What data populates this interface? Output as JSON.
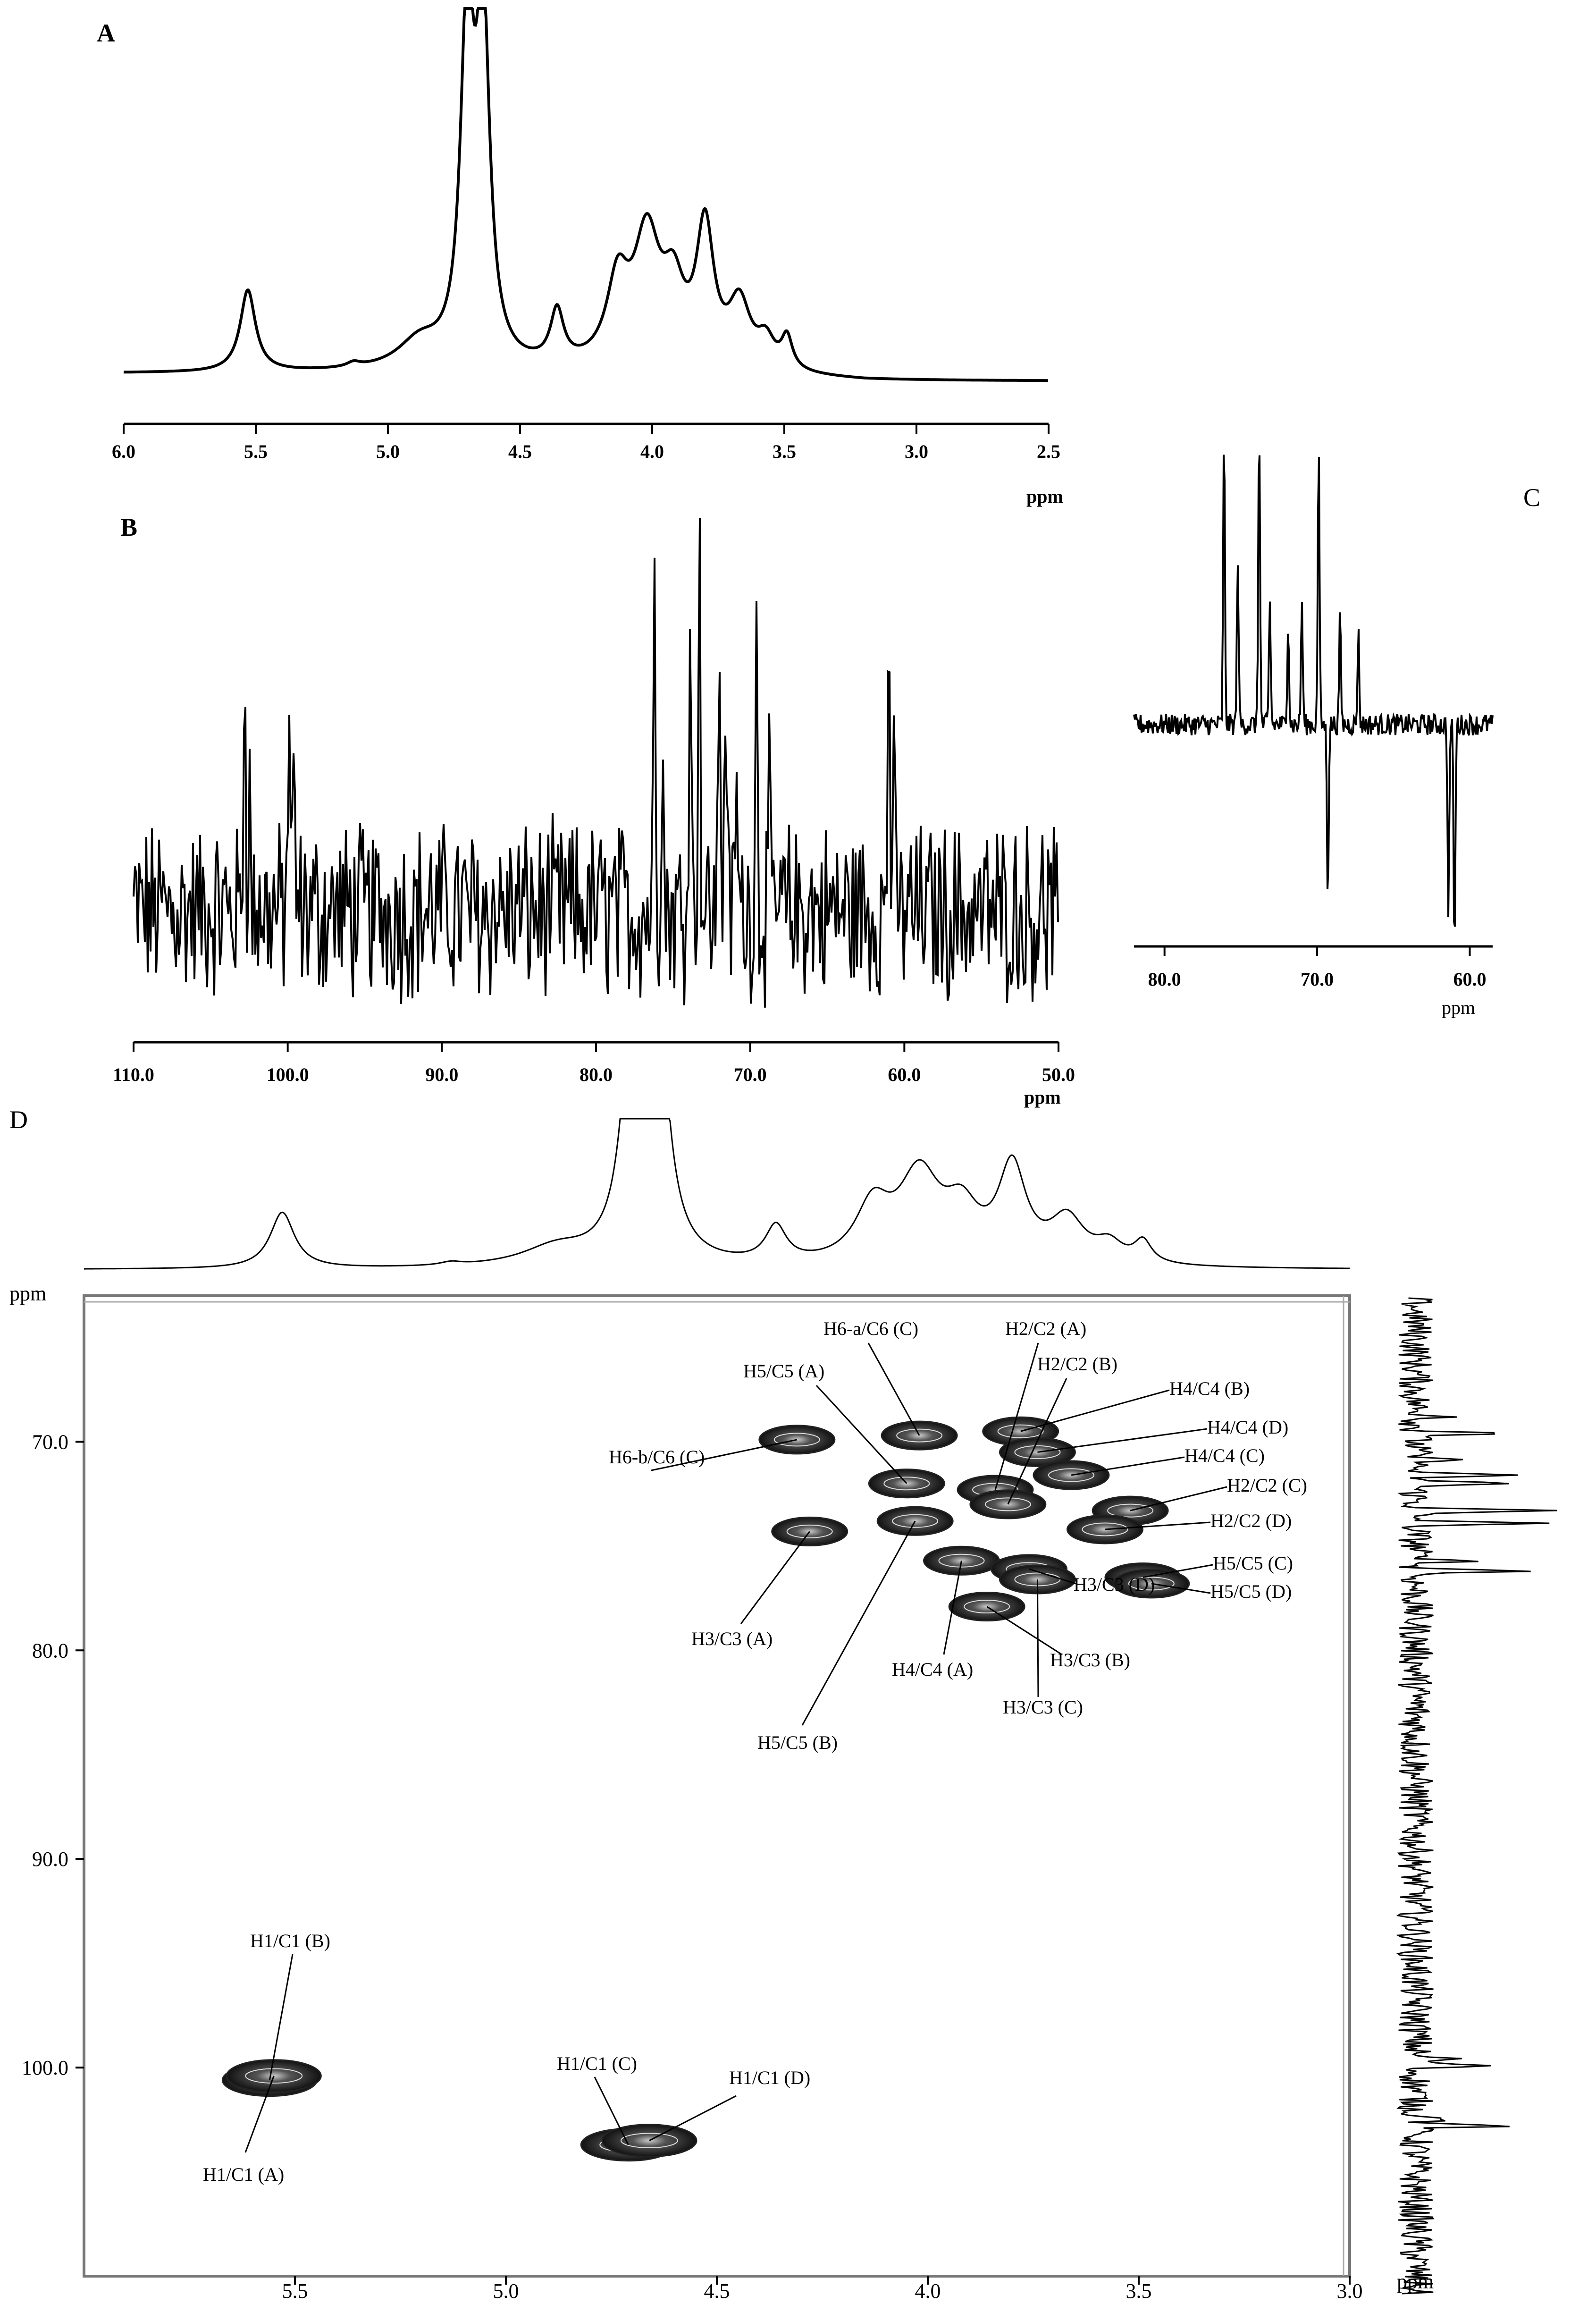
{
  "chart_data": [
    {
      "id": "A",
      "panel_label": "A",
      "type": "line",
      "x_unit": "ppm",
      "xlim": [
        6.0,
        2.5
      ],
      "x_ticks": [
        "6.0",
        "5.5",
        "5.0",
        "4.5",
        "4.0",
        "3.5",
        "3.0",
        "2.5"
      ],
      "peaks": [
        {
          "x": 5.53,
          "height": 0.36,
          "width": 0.035
        },
        {
          "x": 5.13,
          "height": 0.02,
          "width": 0.03
        },
        {
          "x": 4.88,
          "height": 0.12,
          "width": 0.1
        },
        {
          "x": 4.7,
          "height": 1.5,
          "width": 0.03
        },
        {
          "x": 4.64,
          "height": 1.5,
          "width": 0.03
        },
        {
          "x": 4.36,
          "height": 0.23,
          "width": 0.03
        },
        {
          "x": 4.13,
          "height": 0.35,
          "width": 0.05
        },
        {
          "x": 4.02,
          "height": 0.55,
          "width": 0.06
        },
        {
          "x": 3.92,
          "height": 0.3,
          "width": 0.05
        },
        {
          "x": 3.8,
          "height": 0.6,
          "width": 0.04
        },
        {
          "x": 3.67,
          "height": 0.28,
          "width": 0.05
        },
        {
          "x": 3.57,
          "height": 0.12,
          "width": 0.04
        },
        {
          "x": 3.49,
          "height": 0.14,
          "width": 0.025
        }
      ]
    },
    {
      "id": "B",
      "panel_label": "B",
      "type": "line",
      "x_unit": "ppm",
      "xlim": [
        110.0,
        50.0
      ],
      "x_ticks": [
        "110.0",
        "100.0",
        "90.0",
        "80.0",
        "70.0",
        "60.0",
        "50.0"
      ],
      "peaks": [
        {
          "x": 102.8,
          "height": 0.65
        },
        {
          "x": 102.5,
          "height": 0.3
        },
        {
          "x": 99.9,
          "height": 0.56
        },
        {
          "x": 99.6,
          "height": 0.3
        },
        {
          "x": 76.2,
          "height": 0.85
        },
        {
          "x": 75.7,
          "height": 0.45
        },
        {
          "x": 73.9,
          "height": 0.85
        },
        {
          "x": 73.3,
          "height": 0.95
        },
        {
          "x": 72.0,
          "height": 0.72
        },
        {
          "x": 71.6,
          "height": 0.62
        },
        {
          "x": 70.9,
          "height": 0.35
        },
        {
          "x": 69.6,
          "height": 0.7
        },
        {
          "x": 68.8,
          "height": 0.3
        },
        {
          "x": 61.0,
          "height": 0.75
        },
        {
          "x": 60.7,
          "height": 0.35
        }
      ]
    },
    {
      "id": "C",
      "panel_label": "C",
      "type": "line",
      "x_unit": "ppm",
      "xlim": [
        82.0,
        58.5
      ],
      "x_ticks": [
        "80.0",
        "70.0",
        "60.0"
      ],
      "peaks": [
        {
          "x": 76.1,
          "height": 0.95
        },
        {
          "x": 75.2,
          "height": 0.55
        },
        {
          "x": 73.8,
          "height": 1.0
        },
        {
          "x": 73.1,
          "height": 0.4
        },
        {
          "x": 71.9,
          "height": 0.35
        },
        {
          "x": 71.0,
          "height": 0.4
        },
        {
          "x": 69.9,
          "height": 0.9
        },
        {
          "x": 69.3,
          "height": -0.55
        },
        {
          "x": 68.5,
          "height": 0.35
        },
        {
          "x": 67.3,
          "height": 0.3
        },
        {
          "x": 61.4,
          "height": -0.6
        },
        {
          "x": 61.0,
          "height": -0.75
        }
      ]
    },
    {
      "id": "D",
      "panel_label": "D",
      "type": "heatmap",
      "x_unit": "ppm",
      "y_unit": "ppm",
      "xlim": [
        6.0,
        3.0
      ],
      "ylim": [
        63.0,
        110.0
      ],
      "x_ticks": [
        "5.5",
        "5.0",
        "4.5",
        "4.0",
        "3.5",
        "3.0"
      ],
      "y_ticks": [
        "70.0",
        "80.0",
        "90.0",
        "100.0"
      ],
      "cross_peaks": [
        {
          "label": "H1/C1 (B)",
          "x": 5.56,
          "y": 100.6
        },
        {
          "label": "H1/C1 (A)",
          "x": 5.55,
          "y": 100.4
        },
        {
          "label": "H1/C1 (C)",
          "x": 4.71,
          "y": 103.7
        },
        {
          "label": "H1/C1 (D)",
          "x": 4.66,
          "y": 103.5
        },
        {
          "label": "H6-b/C6 (C)",
          "x": 4.31,
          "y": 69.9
        },
        {
          "label": "H6-a/C6 (C)",
          "x": 4.02,
          "y": 69.7
        },
        {
          "label": "H5/C5 (A)",
          "x": 4.05,
          "y": 72.0
        },
        {
          "label": "H2/C2 (A)",
          "x": 3.84,
          "y": 72.3
        },
        {
          "label": "H2/C2 (B)",
          "x": 3.81,
          "y": 73.0
        },
        {
          "label": "H4/C4 (B)",
          "x": 3.78,
          "y": 69.5
        },
        {
          "label": "H4/C4 (D)",
          "x": 3.74,
          "y": 70.5
        },
        {
          "label": "H4/C4 (C)",
          "x": 3.66,
          "y": 71.6
        },
        {
          "label": "H2/C2 (C)",
          "x": 3.52,
          "y": 73.3
        },
        {
          "label": "H2/C2 (D)",
          "x": 3.58,
          "y": 74.2
        },
        {
          "label": "H5/C5 (C)",
          "x": 3.49,
          "y": 76.5
        },
        {
          "label": "H5/C5 (D)",
          "x": 3.47,
          "y": 76.8
        },
        {
          "label": "H3/C3 (A)",
          "x": 4.28,
          "y": 74.3
        },
        {
          "label": "H5/C5 (B)",
          "x": 4.03,
          "y": 73.8
        },
        {
          "label": "H4/C4 (A)",
          "x": 3.92,
          "y": 75.7
        },
        {
          "label": "H3/C3 (D)",
          "x": 3.76,
          "y": 76.1
        },
        {
          "label": "H3/C3 (B)",
          "x": 3.86,
          "y": 77.9
        },
        {
          "label": "H3/C3 (C)",
          "x": 3.74,
          "y": 76.6
        }
      ]
    }
  ]
}
